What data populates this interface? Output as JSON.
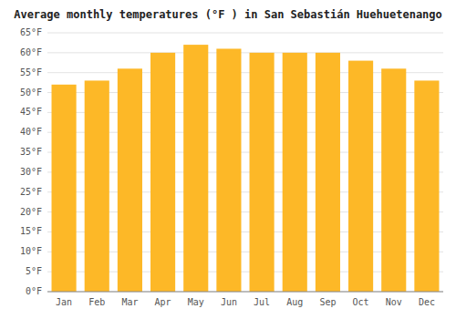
{
  "chart_data": {
    "type": "bar",
    "title": "Average monthly temperatures (°F ) in San Sebastián Huehuetenango",
    "categories": [
      "Jan",
      "Feb",
      "Mar",
      "Apr",
      "May",
      "Jun",
      "Jul",
      "Aug",
      "Sep",
      "Oct",
      "Nov",
      "Dec"
    ],
    "values": [
      52,
      53,
      56,
      60,
      62,
      61,
      60,
      60,
      60,
      58,
      56,
      53
    ],
    "color": "#FDB827",
    "ylim": [
      0,
      65
    ],
    "yticks": [
      {
        "value": 0,
        "label": "0°F"
      },
      {
        "value": 5,
        "label": "5°F"
      },
      {
        "value": 10,
        "label": "10°F"
      },
      {
        "value": 15,
        "label": "15°F"
      },
      {
        "value": 20,
        "label": "20°F"
      },
      {
        "value": 25,
        "label": "25°F"
      },
      {
        "value": 30,
        "label": "30°F"
      },
      {
        "value": 35,
        "label": "35°F"
      },
      {
        "value": 40,
        "label": "40°F"
      },
      {
        "value": 45,
        "label": "45°F"
      },
      {
        "value": 50,
        "label": "50°F"
      },
      {
        "value": 55,
        "label": "55°F"
      },
      {
        "value": 60,
        "label": "60°F"
      },
      {
        "value": 65,
        "label": "65°F"
      }
    ],
    "grid": true
  }
}
